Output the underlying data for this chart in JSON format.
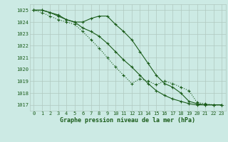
{
  "title": "Graphe pression niveau de la mer (hPa)",
  "bg_color": "#cceae4",
  "grid_color": "#b0c8c0",
  "line_color": "#1a5c1a",
  "x_ticks": [
    0,
    1,
    2,
    3,
    4,
    5,
    6,
    7,
    8,
    9,
    10,
    11,
    12,
    13,
    14,
    15,
    16,
    17,
    18,
    19,
    20,
    21,
    22,
    23
  ],
  "ylim": [
    1016.5,
    1025.5
  ],
  "yticks": [
    1017,
    1018,
    1019,
    1020,
    1021,
    1022,
    1023,
    1024,
    1025
  ],
  "series1": [
    1025.0,
    1025.0,
    1024.8,
    1024.6,
    1024.2,
    1024.0,
    1024.0,
    1024.3,
    1024.5,
    1024.5,
    1023.8,
    1023.2,
    1022.5,
    1021.5,
    1020.5,
    1019.5,
    1018.8,
    1018.5,
    1018.0,
    1017.3,
    1017.1,
    1017.0,
    1017.0,
    1017.0
  ],
  "series2": [
    1025.0,
    1024.8,
    1024.5,
    1024.2,
    1024.0,
    1023.8,
    1023.2,
    1022.5,
    1021.8,
    1021.0,
    1020.2,
    1019.5,
    1018.8,
    1019.2,
    1019.0,
    1018.7,
    1019.0,
    1018.8,
    1018.5,
    1018.2,
    1017.2,
    1017.1,
    1017.0,
    1017.0
  ],
  "series3": [
    1025.0,
    1025.0,
    1024.8,
    1024.5,
    1024.2,
    1024.0,
    1023.5,
    1023.2,
    1022.8,
    1022.2,
    1021.5,
    1020.8,
    1020.2,
    1019.5,
    1018.8,
    1018.2,
    1017.8,
    1017.5,
    1017.3,
    1017.1,
    1017.0,
    1017.0,
    1017.0,
    1017.0
  ],
  "xlabel_fontsize": 6.0,
  "tick_fontsize": 5.0
}
